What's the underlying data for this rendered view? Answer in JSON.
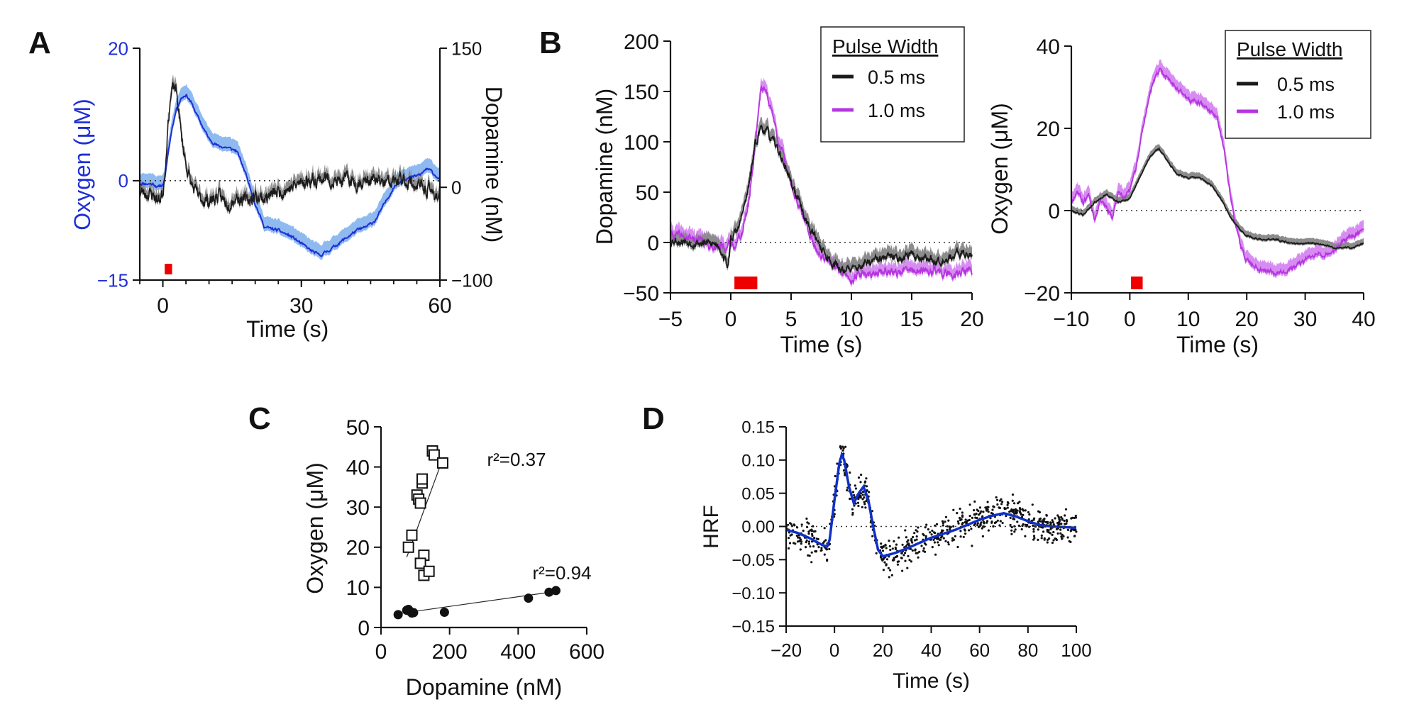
{
  "colors": {
    "black": "#1a1a1a",
    "gray": "#8c8c8c",
    "oxygen_blue": "#1f2fd6",
    "oxygen_band": "#8fbaf0",
    "magenta": "#b535e0",
    "magenta_band": "#d88cf2",
    "stim": "#ee0000",
    "fit": "#1030c8"
  },
  "chart_data": [
    {
      "panel": "A",
      "type": "line",
      "xlabel": "Time (s)",
      "ylabel_left": "Oxygen (μM)",
      "ylabel_right": "Dopamine (nM)",
      "xlim": [
        -5,
        60
      ],
      "xticks": [
        0,
        30,
        60
      ],
      "ylim_left": [
        -15,
        20
      ],
      "yticks_left": [
        -15,
        0,
        20
      ],
      "ylim_right": [
        -100,
        150
      ],
      "yticks_right": [
        -100,
        0,
        150
      ],
      "stimulus": [
        0.4,
        2.0
      ],
      "series": [
        {
          "axis": "left",
          "x": [
            -5,
            -2,
            -1,
            0,
            0.5,
            1,
            2,
            3,
            4,
            5,
            6,
            8,
            10,
            12,
            14,
            16,
            18,
            20,
            22,
            25,
            28,
            30,
            32,
            34,
            36,
            38,
            40,
            42,
            44,
            46,
            48,
            50,
            52,
            54,
            56,
            57,
            58,
            59,
            60
          ],
          "y": [
            -0.4,
            -0.5,
            -1.0,
            -0.6,
            0.5,
            3.5,
            8.0,
            11.0,
            12.5,
            13.0,
            12.0,
            9.0,
            6.3,
            5.2,
            5.0,
            4.5,
            1.0,
            -3.5,
            -7.0,
            -7.5,
            -8.5,
            -9.5,
            -10.5,
            -11.3,
            -10.5,
            -9.5,
            -8.5,
            -7.5,
            -7.0,
            -6.0,
            -3.5,
            -1.0,
            0.3,
            0.5,
            1.0,
            1.8,
            1.5,
            0.8,
            0.3
          ]
        },
        {
          "axis": "right",
          "x": [
            -5,
            -2,
            -1,
            0,
            0.5,
            1,
            1.5,
            2,
            2.5,
            3,
            3.5,
            4,
            5,
            6,
            7,
            8,
            10,
            12,
            14,
            16,
            18,
            20,
            22,
            25,
            28,
            30,
            32,
            35,
            38,
            40,
            42,
            45,
            48,
            50,
            52,
            55,
            58,
            60
          ],
          "y": [
            -5,
            -8,
            -15,
            -6,
            20,
            60,
            90,
            103,
            108,
            100,
            80,
            55,
            25,
            5,
            -5,
            -12,
            -15,
            -10,
            -17,
            -10,
            -15,
            -10,
            -12,
            -5,
            0,
            5,
            8,
            10,
            5,
            8,
            5,
            8,
            4,
            5,
            8,
            2,
            -5,
            -10
          ]
        }
      ]
    },
    {
      "panel": "B-left",
      "type": "line",
      "xlabel": "Time (s)",
      "ylabel": "Dopamine (nM)",
      "xlim": [
        -5,
        20
      ],
      "xticks": [
        -5,
        0,
        5,
        10,
        15,
        20
      ],
      "ylim": [
        -50,
        200
      ],
      "yticks": [
        -50,
        0,
        50,
        100,
        150,
        200
      ],
      "stimulus": [
        0.3,
        2.2
      ],
      "legend_title": "Pulse Width",
      "series": [
        {
          "name": "0.5 ms",
          "x": [
            -5,
            -3,
            -1,
            -0.2,
            0,
            0.5,
            1,
            1.5,
            2,
            2.5,
            3,
            3.5,
            4,
            4.5,
            5,
            5.5,
            6,
            6.5,
            7,
            8,
            9,
            10,
            11,
            12,
            13,
            14,
            15,
            16,
            17,
            18,
            19,
            20
          ],
          "y": [
            3,
            0,
            -2,
            -25,
            5,
            10,
            30,
            55,
            95,
            115,
            110,
            100,
            90,
            75,
            60,
            45,
            30,
            15,
            5,
            -15,
            -25,
            -28,
            -22,
            -18,
            -15,
            -15,
            -12,
            -15,
            -18,
            -15,
            -12,
            -10
          ]
        },
        {
          "name": "1.0 ms",
          "x": [
            -5,
            -3,
            -1,
            0,
            0.5,
            1,
            1.5,
            2,
            2.5,
            3,
            3.5,
            4,
            4.5,
            5,
            5.5,
            6,
            6.5,
            7,
            8,
            9,
            10,
            11,
            12,
            13,
            14,
            15,
            16,
            17,
            18,
            19,
            20
          ],
          "y": [
            8,
            3,
            -5,
            -3,
            0,
            12,
            40,
            95,
            155,
            148,
            125,
            100,
            80,
            60,
            40,
            25,
            10,
            -5,
            -20,
            -28,
            -35,
            -32,
            -30,
            -28,
            -30,
            -27,
            -30,
            -28,
            -32,
            -30,
            -28
          ]
        }
      ]
    },
    {
      "panel": "B-right",
      "type": "line",
      "xlabel": "Time (s)",
      "ylabel": "Oxygen (μM)",
      "xlim": [
        -10,
        40
      ],
      "xticks": [
        -10,
        0,
        10,
        20,
        30,
        40
      ],
      "ylim": [
        -20,
        40
      ],
      "yticks": [
        -20,
        0,
        20,
        40
      ],
      "stimulus": [
        0.2,
        2.2
      ],
      "legend_title": "Pulse Width",
      "series": [
        {
          "name": "0.5 ms",
          "x": [
            -10,
            -8,
            -6,
            -4,
            -2,
            0,
            1,
            2,
            3,
            4,
            5,
            6,
            7,
            8,
            10,
            12,
            14,
            15,
            16,
            17,
            18,
            19,
            20,
            22,
            25,
            28,
            30,
            32,
            35,
            38,
            40
          ],
          "y": [
            0,
            -1,
            2,
            4,
            2,
            3,
            6,
            9,
            12,
            14,
            15,
            13,
            11,
            9,
            8,
            8,
            6,
            4,
            2,
            -1,
            -3,
            -5,
            -6,
            -7,
            -7,
            -8,
            -8,
            -8,
            -9,
            -9,
            -8
          ]
        },
        {
          "name": "1.0 ms",
          "x": [
            -10,
            -9,
            -8,
            -7,
            -6,
            -5,
            -4,
            -3,
            -2,
            -1,
            0,
            1,
            2,
            3,
            4,
            5,
            6,
            8,
            10,
            12,
            14,
            15,
            16,
            17,
            18,
            19,
            20,
            22,
            25,
            28,
            30,
            32,
            34,
            36,
            38,
            40
          ],
          "y": [
            2,
            5,
            2,
            4,
            -2,
            3,
            1,
            -2,
            4,
            3,
            5,
            10,
            18,
            26,
            31,
            34,
            33,
            30,
            27,
            26,
            24,
            22,
            16,
            6,
            -3,
            -9,
            -12,
            -14,
            -15,
            -14,
            -12,
            -10,
            -11,
            -8,
            -6,
            -5
          ]
        }
      ]
    },
    {
      "panel": "C",
      "type": "scatter",
      "xlabel": "Dopamine (nM)",
      "ylabel": "Oxygen (μM)",
      "xlim": [
        0,
        600
      ],
      "xticks": [
        0,
        200,
        400,
        600
      ],
      "ylim": [
        0,
        50
      ],
      "yticks": [
        0,
        10,
        20,
        30,
        40,
        50
      ],
      "series": [
        {
          "marker": "open-square",
          "x": [
            80,
            90,
            105,
            110,
            115,
            120,
            120,
            125,
            115,
            125,
            140,
            150,
            155,
            180
          ],
          "y": [
            20,
            23,
            33,
            32,
            31,
            36,
            37,
            18,
            16,
            13,
            14,
            44,
            43,
            41
          ],
          "fit": [
            [
              75,
              17.5
            ],
            [
              180,
              42
            ]
          ],
          "r2_label": "r²=0.37"
        },
        {
          "marker": "filled-circle",
          "x": [
            50,
            75,
            80,
            85,
            90,
            95,
            185,
            430,
            490,
            510
          ],
          "y": [
            3.2,
            4.3,
            4.5,
            4.0,
            3.6,
            3.7,
            3.8,
            7.3,
            8.8,
            9.2
          ],
          "fit": [
            [
              55,
              3.5
            ],
            [
              510,
              9.0
            ]
          ],
          "r2_label": "r²=0.94"
        }
      ]
    },
    {
      "panel": "D",
      "type": "scatter",
      "xlabel": "Time (s)",
      "ylabel": "HRF",
      "xlim": [
        -20,
        100
      ],
      "xticks": [
        -20,
        0,
        20,
        40,
        60,
        80,
        100
      ],
      "ylim": [
        -0.15,
        0.15
      ],
      "yticks": [
        -0.15,
        -0.1,
        -0.05,
        0.0,
        0.05,
        0.1,
        0.15
      ],
      "fit_curve": {
        "x": [
          -20,
          -15,
          -10,
          -5,
          -3,
          -2,
          0,
          2,
          3,
          4,
          6,
          8,
          10,
          12,
          14,
          16,
          18,
          20,
          22,
          25,
          30,
          40,
          50,
          60,
          65,
          70,
          75,
          80,
          85,
          90,
          95,
          100
        ],
        "y": [
          -0.005,
          -0.01,
          -0.018,
          -0.028,
          -0.03,
          -0.02,
          0.04,
          0.095,
          0.108,
          0.1,
          0.06,
          0.035,
          0.05,
          0.06,
          0.04,
          0.0,
          -0.035,
          -0.045,
          -0.043,
          -0.04,
          -0.033,
          -0.017,
          -0.005,
          0.01,
          0.016,
          0.02,
          0.015,
          0.008,
          0.002,
          0.0,
          -0.001,
          -0.002
        ]
      }
    }
  ]
}
